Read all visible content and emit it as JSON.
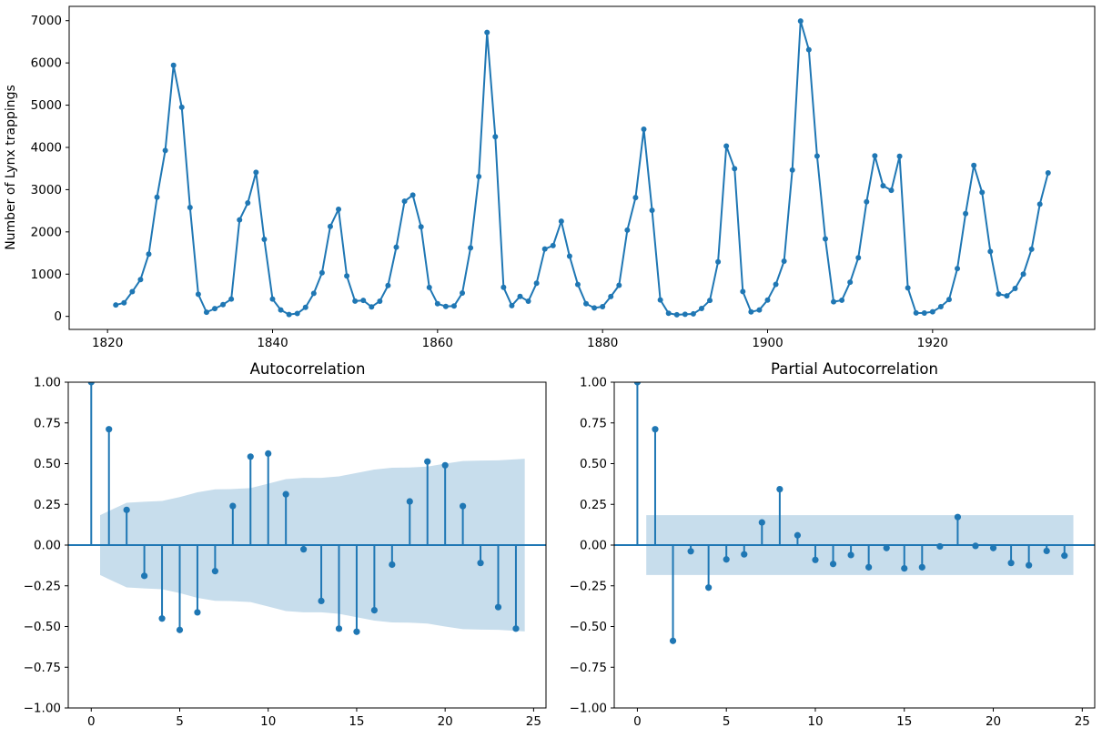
{
  "figure": {
    "accent_color": "#1f77b4",
    "band_fill_color": "#1f77b4",
    "band_opacity": 0.25,
    "spine_color": "#000000",
    "text_color": "#000000",
    "background": "#ffffff"
  },
  "chart_data": [
    {
      "id": "lynx-timeseries",
      "type": "line",
      "title": "",
      "xlabel": "",
      "ylabel": "Number of Lynx trappings",
      "x_start": 1821,
      "x_step": 1,
      "values": [
        269,
        321,
        585,
        871,
        1475,
        2821,
        3928,
        5943,
        4950,
        2577,
        523,
        98,
        184,
        279,
        409,
        2285,
        2685,
        3409,
        1824,
        409,
        151,
        45,
        68,
        213,
        546,
        1033,
        2129,
        2536,
        957,
        361,
        377,
        225,
        360,
        731,
        1638,
        2725,
        2871,
        2119,
        684,
        299,
        236,
        245,
        552,
        1623,
        3311,
        6721,
        4254,
        687,
        255,
        473,
        358,
        784,
        1594,
        1676,
        2251,
        1426,
        756,
        299,
        201,
        229,
        469,
        736,
        2042,
        2811,
        4431,
        2511,
        389,
        73,
        39,
        49,
        59,
        188,
        377,
        1292,
        4031,
        3495,
        587,
        105,
        153,
        387,
        758,
        1307,
        3465,
        6991,
        6313,
        3794,
        1836,
        345,
        382,
        808,
        1388,
        2713,
        3800,
        3091,
        2985,
        3790,
        674,
        81,
        80,
        108,
        229,
        399,
        1132,
        2432,
        3574,
        2935,
        1537,
        529,
        485,
        662,
        1000,
        1590,
        2657,
        3396
      ],
      "xlim": [
        1815.35,
        1939.65
      ],
      "ylim": [
        -308.6,
        7338.6
      ],
      "xticks": {
        "values": [
          1820,
          1840,
          1860,
          1880,
          1900,
          1920
        ],
        "labels": [
          "1820",
          "1840",
          "1860",
          "1880",
          "1900",
          "1920"
        ]
      },
      "yticks": {
        "values": [
          0,
          1000,
          2000,
          3000,
          4000,
          5000,
          6000,
          7000
        ],
        "labels": [
          "0",
          "1000",
          "2000",
          "3000",
          "4000",
          "5000",
          "6000",
          "7000"
        ]
      },
      "grid": false,
      "legend": null
    },
    {
      "id": "acf",
      "type": "stem",
      "title": "Autocorrelation",
      "xlabel": "",
      "ylabel": "",
      "lags": [
        0,
        1,
        2,
        3,
        4,
        5,
        6,
        7,
        8,
        9,
        10,
        11,
        12,
        13,
        14,
        15,
        16,
        17,
        18,
        19,
        20,
        21,
        22,
        23,
        24
      ],
      "values": [
        1.0,
        0.711,
        0.216,
        -0.189,
        -0.451,
        -0.521,
        -0.413,
        -0.16,
        0.24,
        0.543,
        0.562,
        0.312,
        -0.026,
        -0.343,
        -0.513,
        -0.532,
        -0.4,
        -0.12,
        0.268,
        0.513,
        0.49,
        0.239,
        -0.11,
        -0.381,
        -0.513
      ],
      "conf_band": {
        "x": [
          0.5,
          2,
          3,
          4,
          5,
          6,
          7,
          8,
          9,
          10,
          11,
          12,
          13,
          14,
          15,
          16,
          17,
          18,
          19,
          20,
          21,
          22,
          23,
          24.5
        ],
        "halfwidth": [
          0.184,
          0.26,
          0.266,
          0.271,
          0.295,
          0.324,
          0.342,
          0.344,
          0.35,
          0.377,
          0.405,
          0.413,
          0.413,
          0.422,
          0.443,
          0.464,
          0.475,
          0.476,
          0.482,
          0.5,
          0.516,
          0.519,
          0.52,
          0.53
        ]
      },
      "xlim": [
        -1.3,
        25.7
      ],
      "ylim": [
        -1,
        1
      ],
      "xticks": {
        "values": [
          0,
          5,
          10,
          15,
          20,
          25
        ],
        "labels": [
          "0",
          "5",
          "10",
          "15",
          "20",
          "25"
        ]
      },
      "yticks": {
        "values": [
          1,
          0.75,
          0.5,
          0.25,
          0,
          -0.25,
          -0.5,
          -0.75,
          -1
        ],
        "labels": [
          "1.00",
          "0.75",
          "0.50",
          "0.25",
          "0.00",
          "−0.25",
          "−0.50",
          "−0.75",
          "−1.00"
        ]
      },
      "grid": false,
      "legend": null
    },
    {
      "id": "pacf",
      "type": "stem",
      "title": "Partial Autocorrelation",
      "xlabel": "",
      "ylabel": "",
      "lags": [
        0,
        1,
        2,
        3,
        4,
        5,
        6,
        7,
        8,
        9,
        10,
        11,
        12,
        13,
        14,
        15,
        16,
        17,
        18,
        19,
        20,
        21,
        22,
        23,
        24
      ],
      "values": [
        1.0,
        0.711,
        -0.588,
        -0.038,
        -0.261,
        -0.088,
        -0.057,
        0.139,
        0.343,
        0.06,
        -0.091,
        -0.116,
        -0.061,
        -0.136,
        -0.018,
        -0.143,
        -0.136,
        -0.008,
        0.172,
        -0.005,
        -0.018,
        -0.11,
        -0.124,
        -0.036,
        -0.065
      ],
      "conf_band": {
        "x": [
          0.5,
          24.5
        ],
        "halfwidth": [
          0.184,
          0.184
        ]
      },
      "xlim": [
        -1.3,
        25.7
      ],
      "ylim": [
        -1,
        1
      ],
      "xticks": {
        "values": [
          0,
          5,
          10,
          15,
          20,
          25
        ],
        "labels": [
          "0",
          "5",
          "10",
          "15",
          "20",
          "25"
        ]
      },
      "yticks": {
        "values": [
          1,
          0.75,
          0.5,
          0.25,
          0,
          -0.25,
          -0.5,
          -0.75,
          -1
        ],
        "labels": [
          "1.00",
          "0.75",
          "0.50",
          "0.25",
          "0.00",
          "−0.25",
          "−0.50",
          "−0.75",
          "−1.00"
        ]
      },
      "grid": false,
      "legend": null
    }
  ]
}
